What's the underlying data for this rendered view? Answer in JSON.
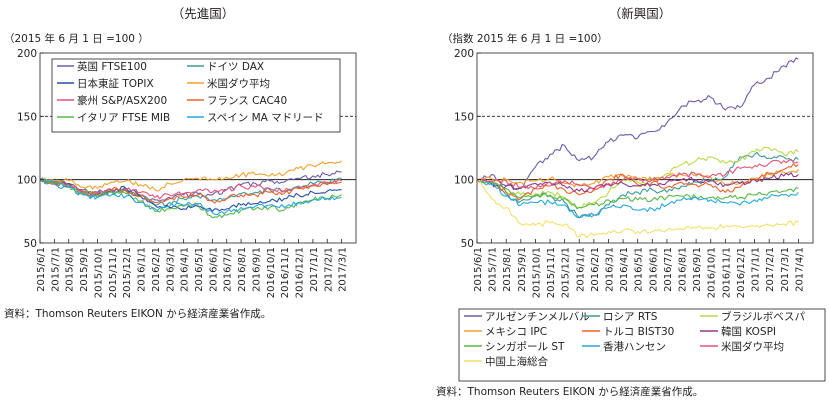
{
  "chart_data": [
    {
      "type": "line",
      "title": "（先進国）",
      "ylabel": "（2015 年 6 月 1 日 =100 ）",
      "ylim": [
        50,
        200
      ],
      "yticks": [
        50,
        100,
        150,
        200
      ],
      "xticks": [
        "2015/6/1",
        "2015/7/1",
        "2015/8/1",
        "2015/9/1",
        "2015/10/1",
        "2015/11/1",
        "2015/12/1",
        "2016/1/1",
        "2016/2/1",
        "2016/3/1",
        "2016/4/1",
        "2016/5/1",
        "2016/6/1",
        "2016/7/1",
        "2016/8/1",
        "2016/9/1",
        "2016/10/1",
        "2016/11/1",
        "2016/12/1",
        "2017/1/1",
        "2017/2/1",
        "2017/3/1"
      ],
      "reference_lines": [
        {
          "y": 100,
          "style": "solid"
        },
        {
          "y": 150,
          "style": "dashed"
        }
      ],
      "legend_position": "top-left",
      "grid": false,
      "series": [
        {
          "name": "英国 FTSE100",
          "color": "#6a5ea8",
          "values": [
            100,
            98,
            97,
            92,
            90,
            92,
            91,
            88,
            84,
            86,
            88,
            89,
            88,
            92,
            96,
            97,
            99,
            98,
            101,
            103,
            104,
            106
          ]
        },
        {
          "name": "ドイツ DAX",
          "color": "#3f9a9a",
          "values": [
            100,
            96,
            94,
            88,
            86,
            91,
            92,
            88,
            80,
            82,
            85,
            87,
            84,
            85,
            89,
            90,
            92,
            91,
            95,
            97,
            98,
            101
          ]
        },
        {
          "name": "日本東証 TOPIX",
          "color": "#2b4fa3",
          "values": [
            100,
            98,
            97,
            90,
            88,
            92,
            93,
            87,
            80,
            78,
            77,
            79,
            75,
            77,
            80,
            81,
            83,
            85,
            88,
            90,
            91,
            92
          ]
        },
        {
          "name": "米国ダウ平均",
          "color": "#f0a22e",
          "values": [
            100,
            99,
            99,
            94,
            93,
            98,
            99,
            96,
            92,
            97,
            100,
            101,
            100,
            102,
            104,
            104,
            103,
            104,
            109,
            111,
            113,
            115
          ]
        },
        {
          "name": "豪州 S&P/ASX200",
          "color": "#e3547a",
          "values": [
            100,
            97,
            96,
            91,
            89,
            91,
            92,
            90,
            86,
            88,
            89,
            92,
            90,
            92,
            95,
            94,
            93,
            91,
            94,
            96,
            97,
            98
          ]
        },
        {
          "name": "フランス CAC40",
          "color": "#e8622d",
          "values": [
            100,
            97,
            95,
            90,
            88,
            92,
            91,
            87,
            82,
            85,
            86,
            88,
            83,
            85,
            88,
            88,
            90,
            89,
            93,
            95,
            96,
            99
          ]
        },
        {
          "name": "イタリア FTSE MIB",
          "color": "#5ab847",
          "values": [
            100,
            97,
            95,
            89,
            88,
            90,
            89,
            83,
            75,
            77,
            79,
            80,
            70,
            72,
            76,
            77,
            78,
            76,
            82,
            84,
            85,
            88
          ]
        },
        {
          "name": "スペイン MA マドリード",
          "color": "#27a7de",
          "values": [
            100,
            97,
            95,
            88,
            86,
            88,
            87,
            82,
            77,
            79,
            80,
            81,
            74,
            75,
            78,
            79,
            80,
            78,
            82,
            84,
            85,
            86
          ]
        }
      ]
    },
    {
      "type": "line",
      "title": "（新興国）",
      "ylabel": "（指数 2015 年 6 月 1 日 =100）",
      "ylim": [
        50,
        200
      ],
      "yticks": [
        50,
        100,
        150,
        200
      ],
      "xticks": [
        "2015/6/1",
        "2015/7/1",
        "2015/8/1",
        "2015/9/1",
        "2015/10/1",
        "2015/11/1",
        "2015/12/1",
        "2016/1/1",
        "2016/2/1",
        "2016/3/1",
        "2016/4/1",
        "2016/5/1",
        "2016/6/1",
        "2016/7/1",
        "2016/8/1",
        "2016/9/1",
        "2016/10/1",
        "2016/11/1",
        "2016/12/1",
        "2017/1/1",
        "2017/2/1",
        "2017/3/1",
        "2017/4/1"
      ],
      "reference_lines": [
        {
          "y": 100,
          "style": "solid"
        },
        {
          "y": 150,
          "style": "dashed"
        }
      ],
      "legend_position": "bottom",
      "grid": false,
      "series": [
        {
          "name": "アルゼンチンメルバル",
          "color": "#6a5ea8",
          "values": [
            100,
            104,
            95,
            93,
            110,
            120,
            127,
            115,
            118,
            130,
            135,
            133,
            138,
            145,
            158,
            162,
            165,
            155,
            157,
            175,
            180,
            190,
            195
          ]
        },
        {
          "name": "ロシア RTS",
          "color": "#3f9a9a",
          "values": [
            100,
            97,
            88,
            83,
            88,
            87,
            82,
            70,
            72,
            80,
            88,
            90,
            92,
            90,
            95,
            98,
            100,
            102,
            118,
            120,
            117,
            118,
            116
          ]
        },
        {
          "name": "ブラジルボベスパ",
          "color": "#b9d94a",
          "values": [
            100,
            98,
            90,
            88,
            89,
            90,
            86,
            78,
            82,
            90,
            100,
            98,
            100,
            105,
            112,
            115,
            118,
            113,
            115,
            122,
            125,
            120,
            122
          ]
        },
        {
          "name": "メキシコ IPC",
          "color": "#f0a22e",
          "values": [
            100,
            101,
            100,
            98,
            99,
            101,
            97,
            95,
            97,
            102,
            103,
            101,
            100,
            103,
            104,
            103,
            102,
            96,
            98,
            101,
            104,
            106,
            108
          ]
        },
        {
          "name": "トルコ BIST30",
          "color": "#e8622d",
          "values": [
            100,
            97,
            90,
            85,
            93,
            95,
            92,
            88,
            92,
            100,
            104,
            96,
            98,
            94,
            98,
            96,
            96,
            90,
            94,
            100,
            105,
            108,
            112
          ]
        },
        {
          "name": "韓国 KOSPI",
          "color": "#8e3a8a",
          "values": [
            100,
            97,
            95,
            94,
            97,
            98,
            95,
            91,
            93,
            96,
            97,
            95,
            96,
            98,
            100,
            100,
            99,
            96,
            97,
            100,
            101,
            103,
            104
          ]
        },
        {
          "name": "シンガポール ST",
          "color": "#5ab847",
          "values": [
            100,
            98,
            93,
            86,
            87,
            88,
            85,
            78,
            80,
            84,
            85,
            84,
            84,
            86,
            87,
            86,
            86,
            86,
            86,
            88,
            90,
            91,
            93
          ]
        },
        {
          "name": "香港ハンセン",
          "color": "#27a7de",
          "values": [
            100,
            96,
            87,
            80,
            82,
            82,
            80,
            70,
            72,
            78,
            80,
            76,
            77,
            80,
            84,
            86,
            84,
            82,
            80,
            84,
            86,
            88,
            90
          ]
        },
        {
          "name": "米国ダウ平均",
          "color": "#e3547a",
          "values": [
            100,
            99,
            99,
            94,
            93,
            98,
            99,
            96,
            92,
            97,
            100,
            101,
            100,
            102,
            104,
            104,
            103,
            104,
            109,
            111,
            113,
            115,
            114
          ]
        },
        {
          "name": "中国上海総合",
          "color": "#f3e06a",
          "values": [
            100,
            85,
            78,
            65,
            64,
            66,
            65,
            55,
            56,
            59,
            60,
            59,
            59,
            60,
            61,
            62,
            62,
            63,
            63,
            63,
            64,
            65,
            66
          ]
        }
      ]
    }
  ],
  "sources": {
    "left": "資料：Thomson Reuters EIKON から経済産業省作成。",
    "right": "資料：Thomson Reuters EIKON から経済産業省作成。"
  }
}
